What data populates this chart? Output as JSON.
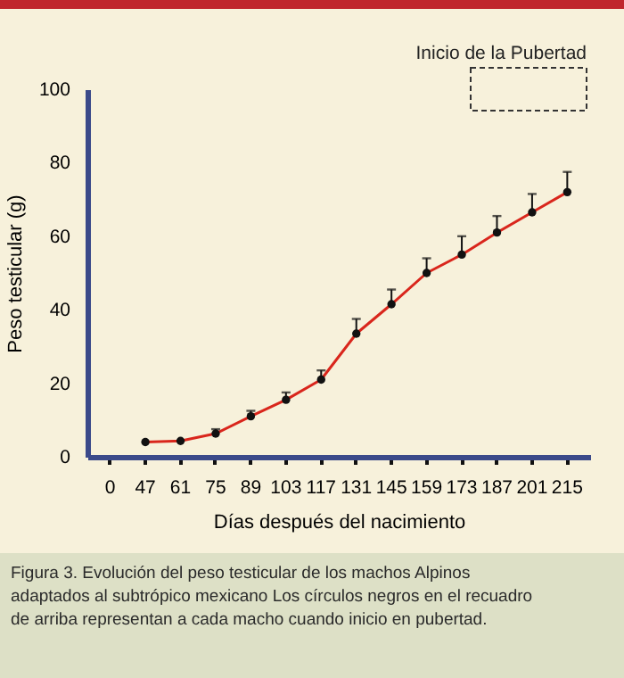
{
  "chart_data": {
    "type": "line",
    "xlabel": "Días después del nacimiento",
    "ylabel": "Peso testicular (g)",
    "categories": [
      "0",
      "47",
      "61",
      "75",
      "89",
      "103",
      "117",
      "131",
      "145",
      "159",
      "173",
      "187",
      "201",
      "215"
    ],
    "series": [
      {
        "color": "#d9261c",
        "values": [
          null,
          4,
          4.3,
          6.3,
          11,
          15.5,
          21,
          33.5,
          41.5,
          50,
          55,
          61,
          66.5,
          72
        ],
        "errors": [
          null,
          null,
          null,
          [
            6.3,
            7.5
          ],
          [
            11,
            12.5
          ],
          [
            15.5,
            17.5
          ],
          [
            21,
            23.5
          ],
          [
            33.5,
            37.5
          ],
          [
            41.5,
            45.5
          ],
          [
            50,
            54
          ],
          [
            55,
            60
          ],
          [
            61,
            65.5
          ],
          [
            66.5,
            71.5
          ],
          [
            72,
            77.5
          ]
        ]
      }
    ],
    "ylim": [
      0,
      100
    ],
    "yticks": [
      0,
      20,
      40,
      60,
      80,
      100
    ],
    "grid": false,
    "marker": "circle",
    "line_style": "solid",
    "annotations": [
      "Inicio de la Pubertad",
      "Figura 3. Evolución del peso testicular de los machos Alpinos adaptados al subtrópico mexicano Los círculos negros en el recuadro de arriba representan a cada macho cuando inicio en pubertad."
    ]
  }
}
